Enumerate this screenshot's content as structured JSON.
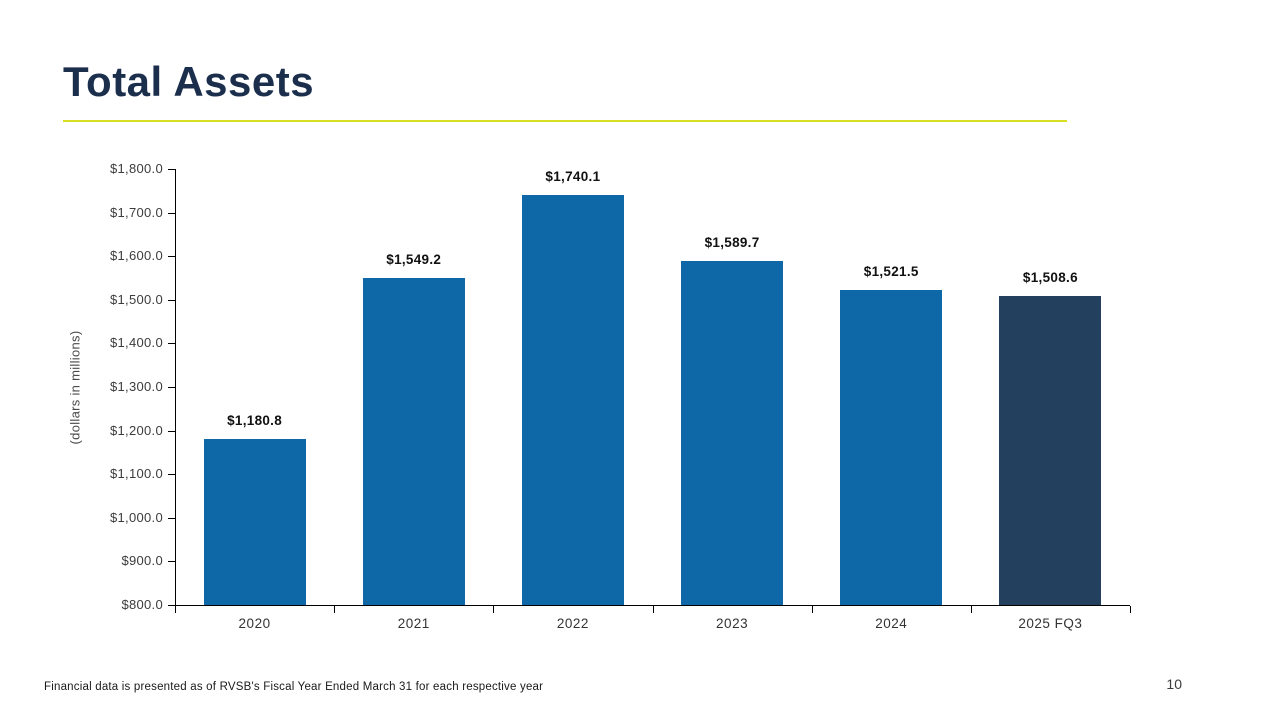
{
  "slide": {
    "title": "Total Assets",
    "footnote": "Financial data is presented as of RVSB's Fiscal Year Ended March 31 for each respective year",
    "page_number": "10",
    "accent_rule_color": "#d7df23",
    "title_color": "#1b2f4d"
  },
  "chart_data": {
    "type": "bar",
    "title": "Total Assets",
    "categories": [
      "2020",
      "2021",
      "2022",
      "2023",
      "2024",
      "2025 FQ3"
    ],
    "values": [
      1180.8,
      1549.2,
      1740.1,
      1589.7,
      1521.5,
      1508.6
    ],
    "value_labels": [
      "$1,180.8",
      "$1,549.2",
      "$1,740.1",
      "$1,589.7",
      "$1,521.5",
      "$1,508.6"
    ],
    "bar_colors": [
      "#0e67a6",
      "#0e67a6",
      "#0e67a6",
      "#0e67a6",
      "#0e67a6",
      "#24405f"
    ],
    "xlabel": "",
    "ylabel": "(dollars in millions)",
    "ylim": [
      800,
      1800
    ],
    "ytick_step": 100,
    "ytick_labels": [
      "$800.0",
      "$900.0",
      "$1,000.0",
      "$1,100.0",
      "$1,200.0",
      "$1,300.0",
      "$1,400.0",
      "$1,500.0",
      "$1,600.0",
      "$1,700.0",
      "$1,800.0"
    ],
    "grid": false,
    "legend": false
  }
}
